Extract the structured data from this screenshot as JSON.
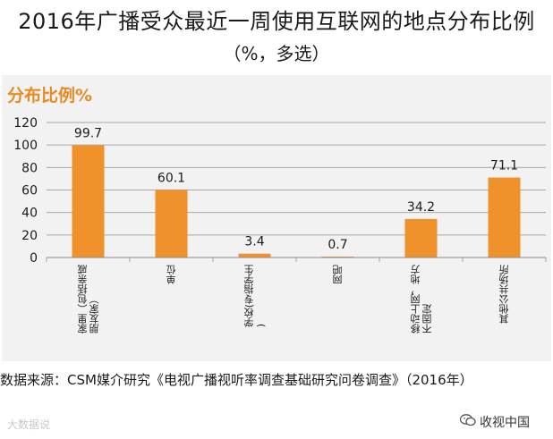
{
  "title": "2016年广播受众最近一周使用互联网的地点分布比例",
  "subtitle": "（%，多选）",
  "source": "数据来源：CSM媒介研究《电视广播视听率调查基础研究问卷调查》（2016年）",
  "watermark": "大数据说",
  "brand": "收视中国",
  "chart_data": {
    "type": "bar",
    "unit_label": "分布比例%",
    "categories": [
      "家里（包括亲戚朋友家）",
      "单位",
      "学校(专指学生)",
      "网吧",
      "移动上网，地方不固定",
      "其他公共场所"
    ],
    "values": [
      99.7,
      60.1,
      3.4,
      0.7,
      34.2,
      71.1
    ],
    "value_labels": [
      "99.7",
      "60.1",
      "3.4",
      "0.7",
      "34.2",
      "71.1"
    ],
    "ylim": [
      0,
      120
    ],
    "yticks": [
      0,
      20,
      40,
      60,
      80,
      100,
      120
    ],
    "grid": true,
    "bar_color": "#f0922b"
  }
}
